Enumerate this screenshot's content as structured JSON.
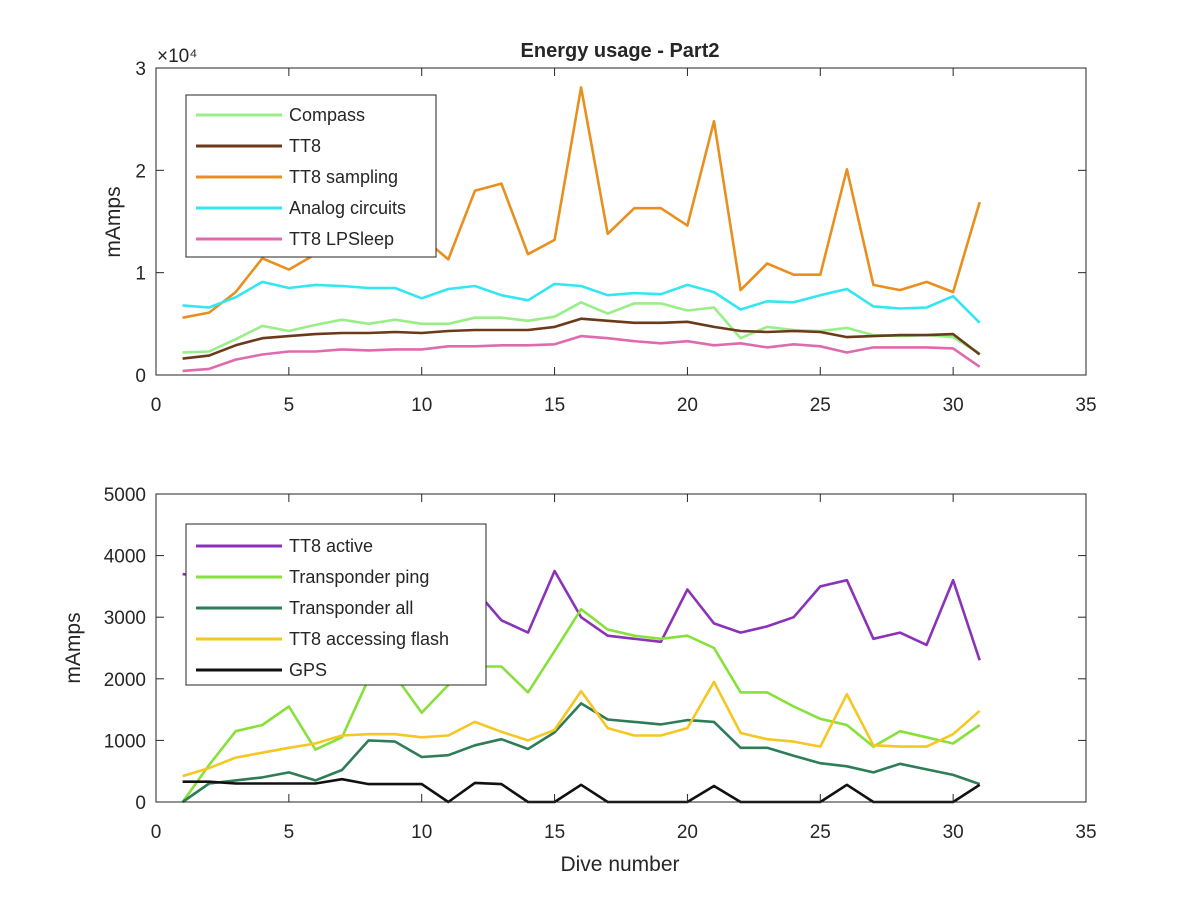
{
  "figure": {
    "title": "Energy usage - Part2"
  },
  "chart_data": [
    {
      "type": "line",
      "title": "Energy usage - Part2",
      "xlabel": "",
      "ylabel": "mAmps",
      "xlim": [
        0,
        35
      ],
      "ylim": [
        0,
        30000
      ],
      "x_ticks": [
        "0",
        "5",
        "10",
        "15",
        "20",
        "25",
        "30",
        "35"
      ],
      "y_ticks": [
        "0",
        "1",
        "2",
        "3"
      ],
      "y_multiplier": "×10⁴",
      "legend_position": "top-left",
      "grid": false,
      "x": [
        1,
        2,
        3,
        4,
        5,
        6,
        7,
        8,
        9,
        10,
        11,
        12,
        13,
        14,
        15,
        16,
        17,
        18,
        19,
        20,
        21,
        22,
        23,
        24,
        25,
        26,
        27,
        28,
        29,
        30,
        31
      ],
      "series": [
        {
          "name": "Compass",
          "color": "#99EE88",
          "values": [
            2200,
            2300,
            3500,
            4800,
            4300,
            4900,
            5400,
            5000,
            5400,
            5000,
            5000,
            5600,
            5600,
            5300,
            5700,
            7100,
            6000,
            7000,
            7000,
            6300,
            6600,
            3600,
            4700,
            4400,
            4300,
            4600,
            3900,
            3800,
            3900,
            3700,
            2100
          ]
        },
        {
          "name": "TT8",
          "color": "#6B3A1A",
          "values": [
            1600,
            1900,
            2900,
            3600,
            3800,
            4000,
            4100,
            4100,
            4200,
            4100,
            4300,
            4400,
            4400,
            4400,
            4700,
            5500,
            5300,
            5100,
            5100,
            5200,
            4700,
            4300,
            4200,
            4300,
            4200,
            3700,
            3800,
            3900,
            3900,
            4000,
            2000
          ]
        },
        {
          "name": "TT8 sampling",
          "color": "#E8901F",
          "values": [
            5600,
            6100,
            8100,
            11400,
            10300,
            11800,
            14000,
            14500,
            14800,
            13500,
            11300,
            18000,
            18700,
            11800,
            13200,
            28100,
            13800,
            16300,
            16300,
            14600,
            24800,
            8300,
            10900,
            9800,
            9800,
            20100,
            8800,
            8300,
            9100,
            8100,
            16900
          ]
        },
        {
          "name": "Analog circuits",
          "color": "#33E6F2",
          "values": [
            6800,
            6600,
            7600,
            9100,
            8500,
            8800,
            8700,
            8500,
            8500,
            7500,
            8400,
            8700,
            7800,
            7300,
            8900,
            8700,
            7800,
            8000,
            7900,
            8800,
            8100,
            6400,
            7200,
            7100,
            7800,
            8400,
            6700,
            6500,
            6600,
            7700,
            5100
          ]
        },
        {
          "name": "TT8 LPSleep",
          "color": "#E06AAE",
          "values": [
            400,
            600,
            1500,
            2000,
            2300,
            2300,
            2500,
            2400,
            2500,
            2500,
            2800,
            2800,
            2900,
            2900,
            3000,
            3800,
            3600,
            3300,
            3100,
            3300,
            2900,
            3100,
            2700,
            3000,
            2800,
            2200,
            2700,
            2700,
            2700,
            2600,
            800
          ]
        }
      ]
    },
    {
      "type": "line",
      "title": "",
      "xlabel": "Dive number",
      "ylabel": "mAmps",
      "xlim": [
        0,
        35
      ],
      "ylim": [
        0,
        5000
      ],
      "x_ticks": [
        "0",
        "5",
        "10",
        "15",
        "20",
        "25",
        "30",
        "35"
      ],
      "y_ticks": [
        "0",
        "1000",
        "2000",
        "3000",
        "4000",
        "5000"
      ],
      "legend_position": "top-left",
      "grid": false,
      "x": [
        1,
        2,
        3,
        4,
        5,
        6,
        7,
        8,
        9,
        10,
        11,
        12,
        13,
        14,
        15,
        16,
        17,
        18,
        19,
        20,
        21,
        22,
        23,
        24,
        25,
        26,
        27,
        28,
        29,
        30,
        31
      ],
      "series": [
        {
          "name": "TT8 active",
          "color": "#8B33B8",
          "values": [
            3700,
            3650,
            3600,
            3600,
            3600,
            3600,
            3600,
            3600,
            3600,
            3550,
            3500,
            3450,
            2950,
            2750,
            3750,
            3000,
            2700,
            2650,
            2600,
            3450,
            2900,
            2750,
            2850,
            3000,
            3500,
            3600,
            2650,
            2750,
            2550,
            3600,
            2300
          ]
        },
        {
          "name": "Transponder ping",
          "color": "#88E03A",
          "values": [
            0,
            600,
            1150,
            1250,
            1550,
            850,
            1050,
            2000,
            2050,
            1450,
            1900,
            2200,
            2200,
            1780,
            2450,
            3130,
            2800,
            2700,
            2650,
            2700,
            2500,
            1780,
            1780,
            1550,
            1350,
            1250,
            900,
            1150,
            1050,
            950,
            1250
          ]
        },
        {
          "name": "Transponder all",
          "color": "#2E7D57",
          "values": [
            0,
            300,
            350,
            400,
            480,
            350,
            520,
            1000,
            980,
            730,
            760,
            920,
            1020,
            860,
            1130,
            1600,
            1340,
            1300,
            1260,
            1330,
            1300,
            880,
            880,
            750,
            630,
            580,
            480,
            620,
            530,
            440,
            290
          ]
        },
        {
          "name": "TT8 accessing flash",
          "color": "#F5C722",
          "values": [
            420,
            550,
            720,
            800,
            880,
            950,
            1080,
            1100,
            1100,
            1050,
            1080,
            1300,
            1140,
            1000,
            1170,
            1800,
            1200,
            1080,
            1080,
            1200,
            1950,
            1120,
            1020,
            980,
            900,
            1750,
            920,
            900,
            900,
            1100,
            1480
          ]
        },
        {
          "name": "GPS",
          "color": "#111111",
          "values": [
            330,
            330,
            300,
            300,
            300,
            300,
            370,
            290,
            290,
            290,
            0,
            310,
            290,
            0,
            0,
            280,
            0,
            0,
            0,
            0,
            260,
            0,
            0,
            0,
            0,
            280,
            0,
            0,
            0,
            0,
            280
          ]
        }
      ]
    }
  ]
}
